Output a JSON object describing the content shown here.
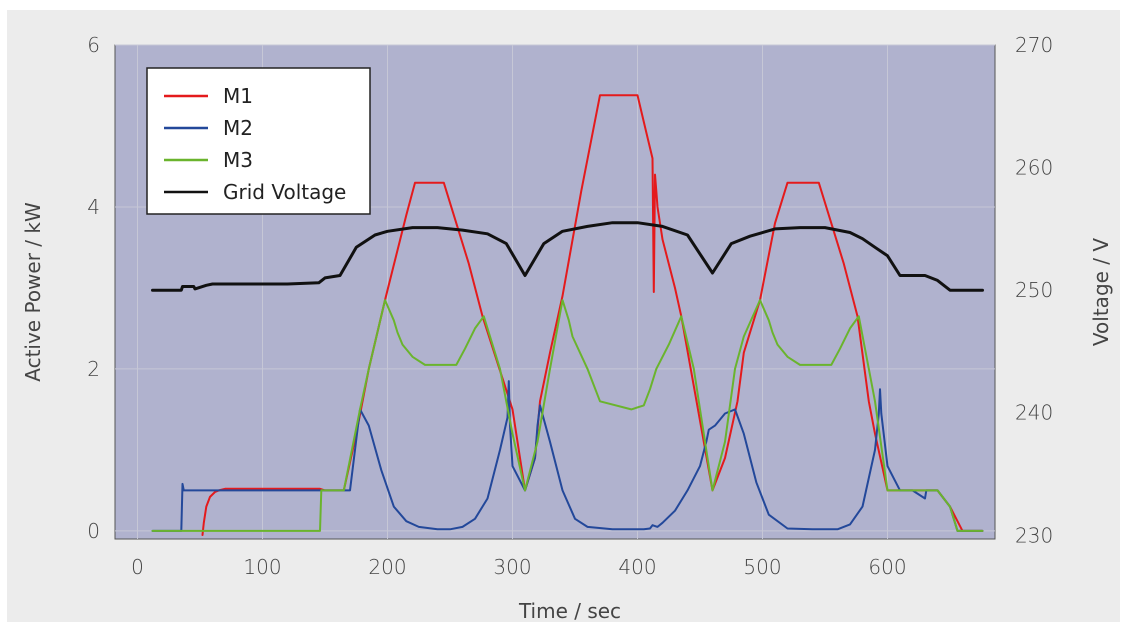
{
  "chart_data": {
    "type": "line",
    "xlabel": "Time / sec",
    "ylabel": "Active Power / kW",
    "y2label": "Voltage / V",
    "xlim": [
      -18,
      686
    ],
    "ylim": [
      -0.1,
      6
    ],
    "y2lim": [
      229.7,
      270
    ],
    "xticks": [
      0,
      100,
      200,
      300,
      400,
      500,
      600
    ],
    "yticks": [
      0,
      2,
      4,
      6
    ],
    "y2ticks": [
      230,
      240,
      250,
      260,
      270
    ],
    "grid": true,
    "legend_position": "top-left",
    "series": [
      {
        "name": "M1",
        "color": "#e41a1c",
        "axis": "left",
        "x": [
          52,
          53,
          55,
          58,
          62,
          65,
          70,
          100,
          120,
          146,
          150,
          160,
          165,
          175,
          185,
          198,
          215,
          222,
          245,
          255,
          265,
          276,
          300,
          310,
          318,
          322,
          330,
          340,
          355,
          370,
          385,
          400,
          405,
          412,
          413,
          414,
          415,
          416,
          420,
          430,
          435,
          460,
          470,
          480,
          485,
          498,
          510,
          520,
          545,
          555,
          565,
          576,
          585,
          590,
          600,
          640,
          650,
          660,
          670,
          676
        ],
        "y": [
          -0.05,
          0.1,
          0.3,
          0.42,
          0.48,
          0.5,
          0.52,
          0.52,
          0.52,
          0.52,
          0.5,
          0.5,
          0.5,
          1.2,
          2.0,
          2.85,
          3.9,
          4.3,
          4.3,
          3.8,
          3.3,
          2.65,
          1.5,
          0.5,
          0.9,
          1.6,
          2.2,
          2.9,
          4.2,
          5.38,
          5.38,
          5.38,
          5.05,
          4.6,
          2.95,
          4.4,
          4.2,
          4.0,
          3.6,
          3.0,
          2.65,
          0.5,
          0.9,
          1.6,
          2.2,
          2.85,
          3.8,
          4.3,
          4.3,
          3.8,
          3.3,
          2.65,
          1.6,
          1.2,
          0.5,
          0.5,
          0.3,
          0.0,
          0.0,
          0.0
        ]
      },
      {
        "name": "M2",
        "color": "#23489a",
        "axis": "left",
        "x": [
          12,
          35,
          36,
          37,
          38,
          150,
          160,
          170,
          178,
          185,
          195,
          205,
          215,
          225,
          240,
          250,
          260,
          270,
          280,
          290,
          296,
          297,
          298,
          300,
          310,
          318,
          320,
          322,
          330,
          340,
          350,
          360,
          380,
          405,
          410,
          412,
          416,
          420,
          430,
          440,
          450,
          455,
          457,
          462,
          470,
          478,
          485,
          495,
          505,
          520,
          540,
          560,
          570,
          580,
          590,
          593,
          594,
          595,
          600,
          610,
          620,
          630,
          631,
          632,
          640,
          650,
          656,
          670,
          676
        ],
        "y": [
          0.0,
          0.0,
          0.58,
          0.5,
          0.5,
          0.5,
          0.5,
          0.5,
          1.5,
          1.3,
          0.75,
          0.3,
          0.12,
          0.05,
          0.02,
          0.02,
          0.05,
          0.15,
          0.4,
          1.0,
          1.4,
          1.85,
          1.3,
          0.8,
          0.5,
          0.9,
          1.3,
          1.55,
          1.1,
          0.5,
          0.15,
          0.05,
          0.02,
          0.02,
          0.03,
          0.07,
          0.05,
          0.1,
          0.25,
          0.5,
          0.8,
          1.1,
          1.25,
          1.3,
          1.45,
          1.5,
          1.2,
          0.6,
          0.2,
          0.03,
          0.02,
          0.02,
          0.08,
          0.3,
          1.0,
          1.45,
          1.75,
          1.45,
          0.8,
          0.5,
          0.5,
          0.4,
          0.5,
          0.5,
          0.5,
          0.3,
          0.0,
          0.0,
          0.0
        ]
      },
      {
        "name": "M3",
        "color": "#6ab42d",
        "axis": "left",
        "x": [
          12,
          146,
          147,
          148,
          160,
          165,
          178,
          185,
          198,
          205,
          208,
          212,
          220,
          230,
          255,
          262,
          270,
          277,
          290,
          300,
          310,
          320,
          330,
          340,
          345,
          348,
          360,
          370,
          395,
          405,
          410,
          415,
          425,
          435,
          445,
          460,
          470,
          478,
          485,
          498,
          505,
          508,
          512,
          520,
          530,
          555,
          562,
          570,
          577,
          590,
          600,
          640,
          650,
          656,
          670,
          676
        ],
        "y": [
          0.0,
          0.0,
          0.5,
          0.5,
          0.5,
          0.5,
          1.5,
          2.0,
          2.85,
          2.6,
          2.45,
          2.3,
          2.15,
          2.05,
          2.05,
          2.25,
          2.5,
          2.65,
          2.0,
          1.2,
          0.5,
          1.1,
          2.0,
          2.85,
          2.6,
          2.4,
          2.0,
          1.6,
          1.5,
          1.55,
          1.75,
          2.0,
          2.3,
          2.65,
          2.0,
          0.5,
          1.1,
          2.0,
          2.4,
          2.85,
          2.6,
          2.45,
          2.3,
          2.15,
          2.05,
          2.05,
          2.25,
          2.5,
          2.65,
          1.6,
          0.5,
          0.5,
          0.3,
          0.0,
          0.0,
          0.0
        ]
      },
      {
        "name": "Grid Voltage",
        "color": "#111111",
        "axis": "right",
        "x": [
          12,
          35,
          36,
          45,
          46,
          55,
          60,
          80,
          100,
          120,
          145,
          150,
          162,
          175,
          190,
          200,
          220,
          240,
          260,
          280,
          295,
          310,
          325,
          340,
          360,
          380,
          400,
          420,
          440,
          460,
          475,
          490,
          510,
          530,
          550,
          570,
          580,
          590,
          600,
          610,
          620,
          630,
          640,
          650,
          660,
          676
        ],
        "y": [
          250.0,
          250.0,
          250.3,
          250.3,
          250.1,
          250.4,
          250.5,
          250.5,
          250.5,
          250.5,
          250.6,
          251.0,
          251.2,
          253.5,
          254.5,
          254.8,
          255.1,
          255.1,
          254.9,
          254.6,
          253.8,
          251.2,
          253.8,
          254.8,
          255.2,
          255.5,
          255.5,
          255.2,
          254.5,
          251.4,
          253.8,
          254.4,
          255.0,
          255.1,
          255.1,
          254.7,
          254.2,
          253.5,
          252.8,
          251.2,
          251.2,
          251.2,
          250.8,
          250.0,
          250.0,
          250.0
        ]
      }
    ]
  }
}
